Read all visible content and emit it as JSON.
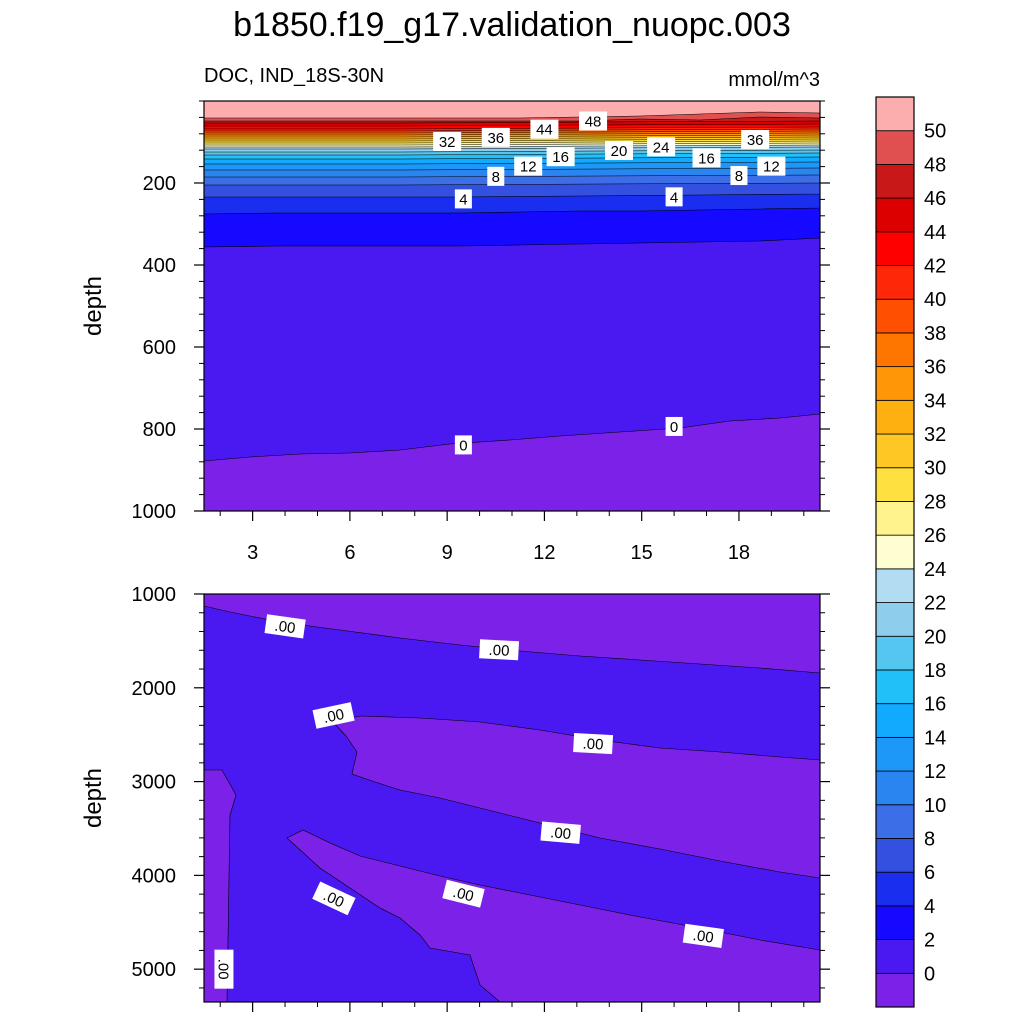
{
  "figure": {
    "title": "b1850.f19_g17.validation_nuopc.003",
    "left_label": "DOC, IND_18S-30N",
    "right_label": "mmol/m^3"
  },
  "colorbar": {
    "levels": [
      0,
      2,
      4,
      6,
      8,
      10,
      12,
      14,
      16,
      18,
      20,
      22,
      24,
      26,
      28,
      30,
      32,
      34,
      36,
      38,
      40,
      42,
      44,
      46,
      48,
      50
    ],
    "labels": [
      "0",
      "2",
      "4",
      "6",
      "8",
      "10",
      "12",
      "14",
      "16",
      "18",
      "20",
      "22",
      "24",
      "26",
      "28",
      "30",
      "32",
      "34",
      "36",
      "38",
      "40",
      "42",
      "44",
      "46",
      "48",
      "50"
    ],
    "colors": [
      "#7c21e8",
      "#4a18f0",
      "#1609ff",
      "#1a2ef0",
      "#3450e0",
      "#3c6ee8",
      "#2a85f0",
      "#1e98f8",
      "#12aaff",
      "#22c0f8",
      "#55c6f0",
      "#8fcdec",
      "#b2dcf2",
      "#fefed0",
      "#fef38c",
      "#fee040",
      "#fec824",
      "#feb010",
      "#fe9608",
      "#fe7500",
      "#fe5000",
      "#fe2808",
      "#ff0000",
      "#dc0000",
      "#c81818",
      "#e05050",
      "#fcaeae"
    ]
  },
  "chart_data": [
    {
      "type": "contour",
      "xlabel": "",
      "ylabel": "depth",
      "xlim": [
        1.5,
        20.5
      ],
      "ylim": [
        1000,
        0
      ],
      "xticks": [
        3,
        6,
        9,
        12,
        15,
        18
      ],
      "xtick_labels": [
        "3",
        "6",
        "9",
        "12",
        "15",
        "18"
      ],
      "yticks": [
        200,
        400,
        600,
        800,
        1000
      ],
      "ytick_labels": [
        "200",
        "400",
        "600",
        "800",
        "1000"
      ],
      "contour_labels": [
        {
          "text": "48",
          "x": 13.5,
          "y": 50
        },
        {
          "text": "44",
          "x": 12.0,
          "y": 70
        },
        {
          "text": "36",
          "x": 10.5,
          "y": 90
        },
        {
          "text": "32",
          "x": 9.0,
          "y": 100
        },
        {
          "text": "36",
          "x": 18.5,
          "y": 95
        },
        {
          "text": "24",
          "x": 15.6,
          "y": 113
        },
        {
          "text": "20",
          "x": 14.3,
          "y": 122
        },
        {
          "text": "16",
          "x": 12.5,
          "y": 137
        },
        {
          "text": "16",
          "x": 17.0,
          "y": 140
        },
        {
          "text": "12",
          "x": 11.5,
          "y": 160
        },
        {
          "text": "12",
          "x": 19.0,
          "y": 160
        },
        {
          "text": "8",
          "x": 10.5,
          "y": 185
        },
        {
          "text": "8",
          "x": 18.0,
          "y": 183
        },
        {
          "text": "4",
          "x": 9.5,
          "y": 240
        },
        {
          "text": "4",
          "x": 16.0,
          "y": 235
        },
        {
          "text": "0",
          "x": 9.5,
          "y": 840
        },
        {
          "text": "0",
          "x": 16.0,
          "y": 795
        }
      ]
    },
    {
      "type": "contour",
      "xlabel": "",
      "ylabel": "depth",
      "xlim": [
        1.5,
        20.5
      ],
      "ylim": [
        5350,
        1000
      ],
      "xticks": [
        3,
        6,
        9,
        12,
        15,
        18
      ],
      "yticks": [
        1000,
        2000,
        3000,
        4000,
        5000
      ],
      "ytick_labels": [
        "1000",
        "2000",
        "3000",
        "4000",
        "5000"
      ],
      "contour_labels": [
        {
          "text": ".00",
          "x": 4.0,
          "y": 1350,
          "angle": 8
        },
        {
          "text": ".00",
          "x": 10.6,
          "y": 1600,
          "angle": 3
        },
        {
          "text": ".00",
          "x": 5.5,
          "y": 2300,
          "angle": -12
        },
        {
          "text": ".00",
          "x": 13.5,
          "y": 2600,
          "angle": 3
        },
        {
          "text": ".00",
          "x": 12.5,
          "y": 3550,
          "angle": 5
        },
        {
          "text": ".00",
          "x": 5.5,
          "y": 4250,
          "angle": 25
        },
        {
          "text": ".00",
          "x": 9.5,
          "y": 4200,
          "angle": 14
        },
        {
          "text": ".00",
          "x": 16.9,
          "y": 4650,
          "angle": 8
        },
        {
          "text": ".00",
          "x": 2.1,
          "y": 5000,
          "angle": 90
        }
      ]
    }
  ]
}
